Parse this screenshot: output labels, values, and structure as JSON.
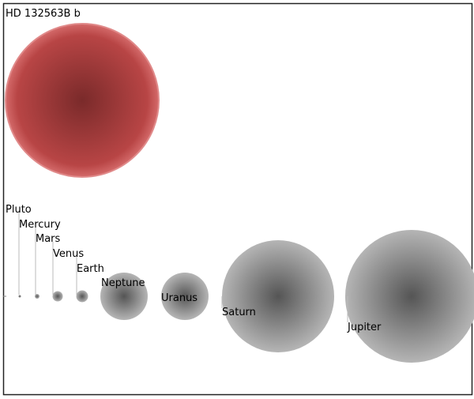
{
  "title": "HD 132563B b",
  "planets": [
    {
      "label": "Pluto"
    },
    {
      "label": "Mercury"
    },
    {
      "label": "Mars"
    },
    {
      "label": "Venus"
    },
    {
      "label": "Earth"
    },
    {
      "label": "Neptune"
    },
    {
      "label": "Uranus"
    },
    {
      "label": "Saturn"
    },
    {
      "label": "Jupiter"
    }
  ]
}
